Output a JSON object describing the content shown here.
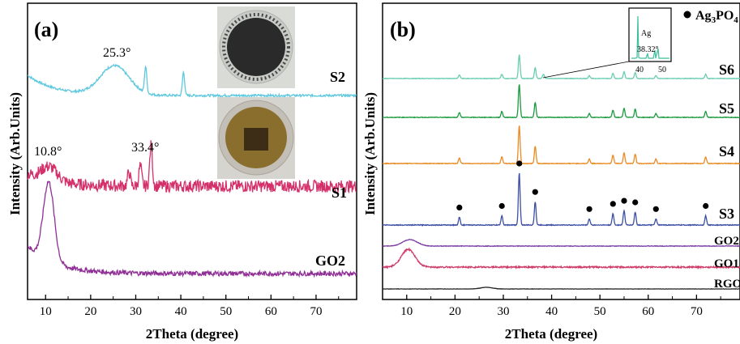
{
  "chart_data": [
    {
      "panel": "(a)",
      "type": "line",
      "xlabel": "2Theta (degree)",
      "ylabel": "Intensity (Arb.Units)",
      "xlim": [
        6,
        79
      ],
      "xticks": [
        10,
        20,
        30,
        40,
        50,
        60,
        70
      ],
      "series": [
        {
          "name": "S2",
          "color": "#5ec8df",
          "peaks": [
            [
              25.3,
              1.0,
              3.2
            ],
            [
              32.2,
              0.9,
              0.25
            ],
            [
              40.6,
              0.8,
              0.25
            ]
          ],
          "baseline_start": 0.7,
          "noise": 0.08
        },
        {
          "name": "S1",
          "color": "#d4306a",
          "peaks": [
            [
              10.8,
              0.35,
              1.8
            ],
            [
              28.5,
              0.35,
              0.3
            ],
            [
              31.0,
              0.5,
              0.3
            ],
            [
              33.4,
              1.0,
              0.3
            ]
          ],
          "baseline_start": 0.3,
          "noise": 0.25
        },
        {
          "name": "GO2",
          "color": "#8f2f96",
          "peaks": [
            [
              10.7,
              1.0,
              1.2
            ]
          ],
          "baseline_start": 0.35,
          "noise": 0.06
        }
      ],
      "annotations": [
        "25.3°",
        "10.8°",
        "33.4°"
      ]
    },
    {
      "panel": "(b)",
      "type": "line",
      "xlabel": "2Theta (degree)",
      "ylabel": "Intensity (Arb.Units)",
      "xlim": [
        5,
        79
      ],
      "xticks": [
        10,
        20,
        30,
        40,
        50,
        60,
        70
      ],
      "ag3po4_peaks": [
        20.9,
        29.7,
        33.3,
        36.6,
        47.8,
        52.7,
        55.0,
        57.3,
        61.6,
        71.9
      ],
      "ag3po4_rel": [
        0.15,
        0.18,
        1.0,
        0.45,
        0.12,
        0.22,
        0.28,
        0.25,
        0.12,
        0.18
      ],
      "series": [
        {
          "name": "S6",
          "color": "#69cdb0",
          "scale": 0.7
        },
        {
          "name": "S5",
          "color": "#1b9a3e",
          "scale": 0.85
        },
        {
          "name": "S4",
          "color": "#ea8a24",
          "scale": 0.9
        },
        {
          "name": "S3",
          "color": "#3d4fa3",
          "scale": 1.0
        },
        {
          "name": "GO2",
          "color": "#7b3aa2",
          "broad": [
            10.7,
            1.0,
            1.5
          ]
        },
        {
          "name": "GO1",
          "color": "#d03c6a",
          "broad": [
            10.3,
            1.0,
            1.4
          ]
        },
        {
          "name": "RGO",
          "color": "#222222",
          "broad": [
            26.5,
            0.5,
            1.2
          ]
        }
      ],
      "legend": {
        "marker": "●",
        "label": "Ag3PO4"
      },
      "inset": {
        "peak_label": "Ag",
        "peak_value": "38.32°",
        "xticks": [
          "40",
          "50"
        ]
      }
    }
  ],
  "text": {
    "a_panel": "(a)",
    "b_panel": "(b)",
    "a_xlabel": "2Theta (degree)",
    "b_xlabel": "2Theta (degree)",
    "a_ylabel": "Intensity (Arb.Units)",
    "b_ylabel": "Intensity (Arb.Units)",
    "a_S2": "S2",
    "a_S1": "S1",
    "a_GO2": "GO2",
    "ann_253": "25.3°",
    "ann_108": "10.8°",
    "ann_334": "33.4°",
    "b_S6": "S6",
    "b_S5": "S5",
    "b_S4": "S4",
    "b_S3": "S3",
    "b_GO2": "GO2",
    "b_GO1": "GO1",
    "b_RGO": "RGO",
    "legend_dot": "●",
    "legend_label": "Ag3PO4",
    "inset_ag": "Ag",
    "inset_val": "38.32°",
    "inset_t40": "40",
    "inset_t50": "50"
  },
  "ticks": {
    "a": [
      "10",
      "20",
      "30",
      "40",
      "50",
      "60",
      "70"
    ],
    "b": [
      "10",
      "20",
      "30",
      "40",
      "50",
      "60",
      "70"
    ]
  }
}
